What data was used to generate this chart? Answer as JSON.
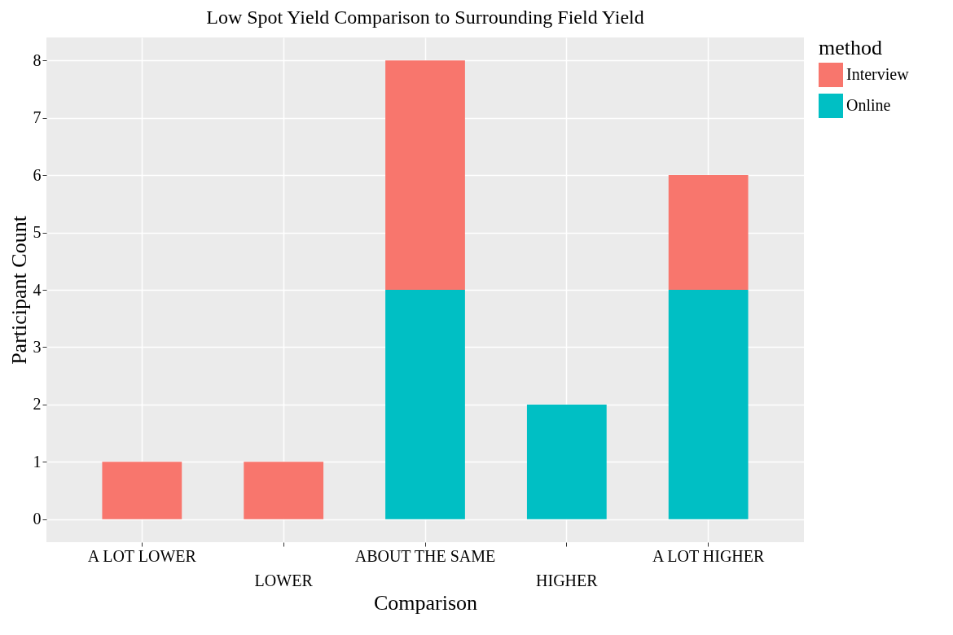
{
  "chart_data": {
    "type": "bar",
    "title": "Low Spot Yield Comparison to Surrounding Field Yield",
    "xlabel": "Comparison",
    "ylabel": "Participant Count",
    "legend_title": "method",
    "categories": [
      "A LOT LOWER",
      "LOWER",
      "ABOUT THE SAME",
      "HIGHER",
      "A LOT HIGHER"
    ],
    "series": [
      {
        "name": "Online",
        "color": "#00bfc4",
        "values": [
          0,
          0,
          4,
          2,
          4
        ]
      },
      {
        "name": "Interview",
        "color": "#f8766d",
        "values": [
          1,
          1,
          4,
          0,
          2
        ]
      }
    ],
    "stacked": true,
    "ylim": [
      -0.4,
      8.4
    ],
    "yticks": [
      0,
      1,
      2,
      3,
      4,
      5,
      6,
      7,
      8
    ],
    "grid": true,
    "legend": "right"
  }
}
